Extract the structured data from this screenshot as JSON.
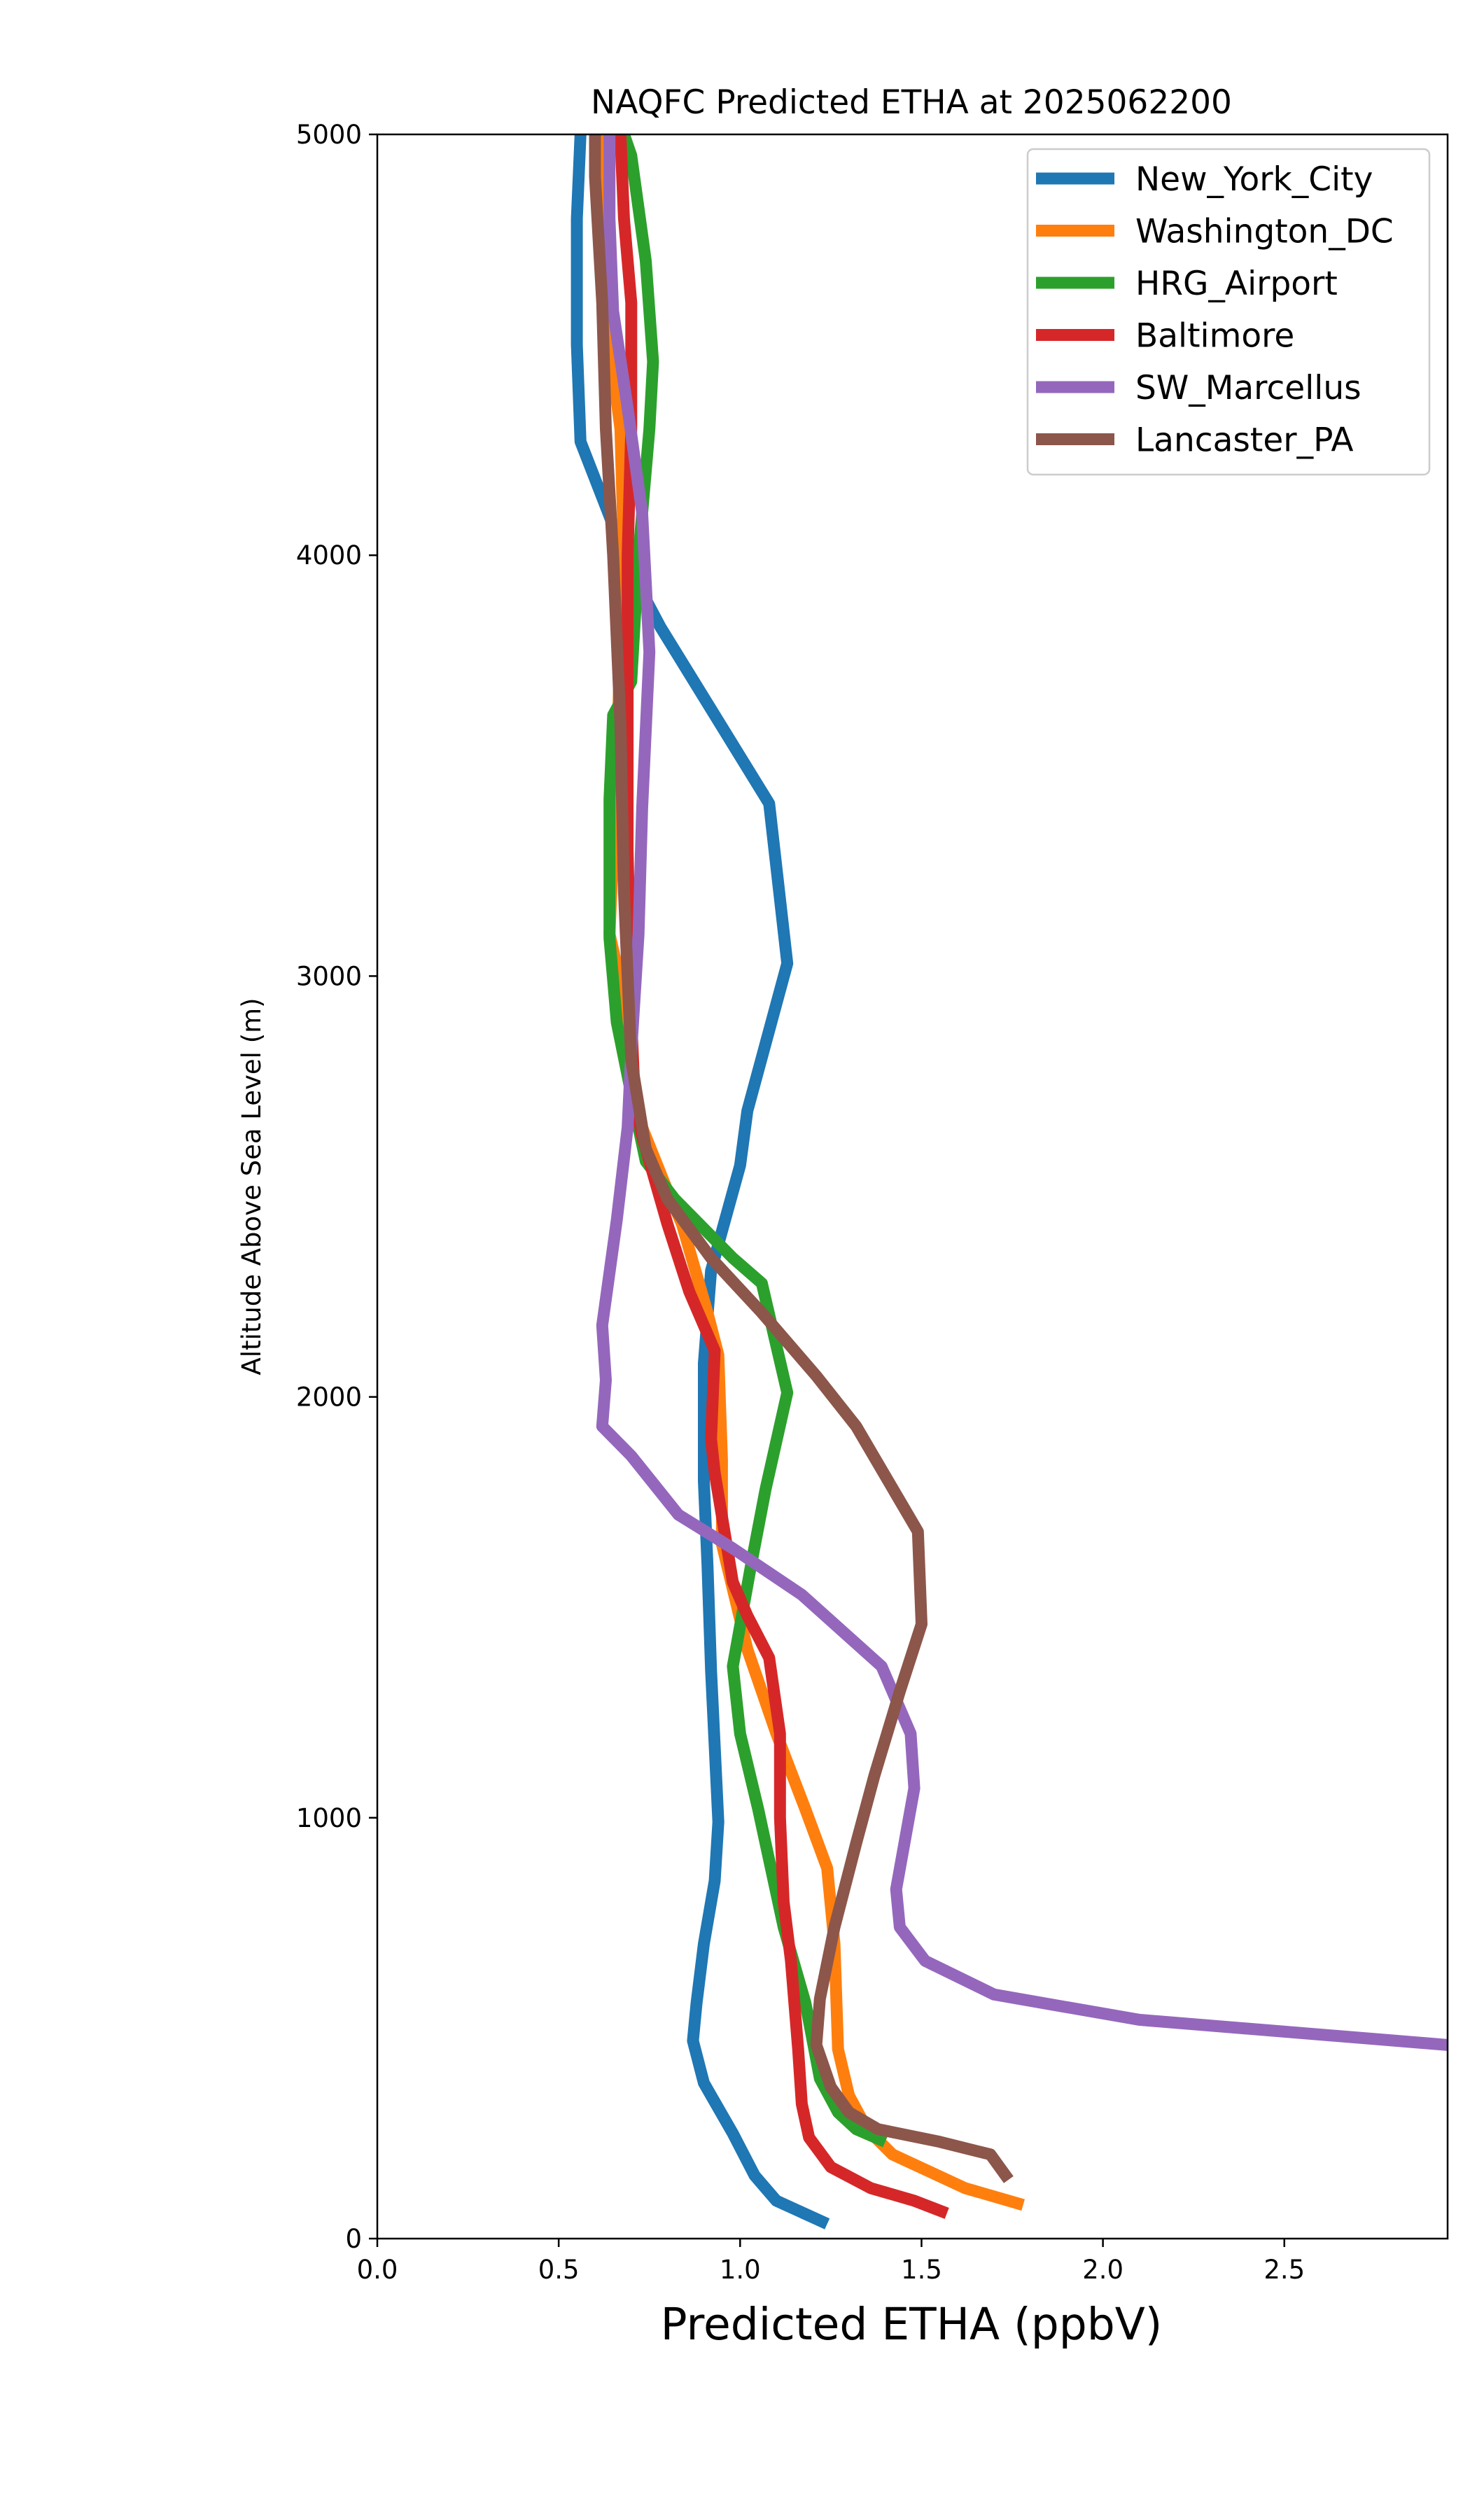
{
  "chart_data": {
    "type": "line",
    "title": "NAQFC Predicted ETHA at 2025062200",
    "xlabel": "Predicted ETHA (ppbV)",
    "ylabel": "Altitude Above Sea Level (m)",
    "xlim": [
      0.0,
      2.95
    ],
    "ylim": [
      0,
      5000
    ],
    "xticks": [
      0.0,
      0.5,
      1.0,
      1.5,
      2.0,
      2.5
    ],
    "xtick_labels": [
      "0.0",
      "0.5",
      "1.0",
      "1.5",
      "2.0",
      "2.5"
    ],
    "yticks": [
      0,
      1000,
      2000,
      3000,
      4000,
      5000
    ],
    "ytick_labels": [
      "0",
      "1000",
      "2000",
      "3000",
      "4000",
      "5000"
    ],
    "grid": false,
    "legend_position": "top-right",
    "series": [
      {
        "name": "New_York_City",
        "color": "#1f77b4",
        "points": [
          [
            1.24,
            35
          ],
          [
            1.1,
            90
          ],
          [
            1.04,
            150
          ],
          [
            0.98,
            250
          ],
          [
            0.9,
            370
          ],
          [
            0.87,
            470
          ],
          [
            0.88,
            560
          ],
          [
            0.9,
            700
          ],
          [
            0.93,
            850
          ],
          [
            0.94,
            990
          ],
          [
            0.92,
            1350
          ],
          [
            0.91,
            1600
          ],
          [
            0.9,
            1800
          ],
          [
            0.9,
            2080
          ],
          [
            0.92,
            2300
          ],
          [
            1.0,
            2550
          ],
          [
            1.02,
            2680
          ],
          [
            1.13,
            3030
          ],
          [
            1.08,
            3410
          ],
          [
            0.78,
            3830
          ],
          [
            0.7,
            3960
          ],
          [
            0.56,
            4270
          ],
          [
            0.55,
            4500
          ],
          [
            0.55,
            4800
          ],
          [
            0.56,
            5000
          ]
        ]
      },
      {
        "name": "Washington_DC",
        "color": "#ff7f0e",
        "points": [
          [
            1.78,
            80
          ],
          [
            1.62,
            120
          ],
          [
            1.52,
            160
          ],
          [
            1.42,
            200
          ],
          [
            1.35,
            260
          ],
          [
            1.3,
            340
          ],
          [
            1.27,
            450
          ],
          [
            1.26,
            700
          ],
          [
            1.24,
            880
          ],
          [
            1.18,
            1020
          ],
          [
            1.1,
            1200
          ],
          [
            1.02,
            1400
          ],
          [
            0.95,
            1650
          ],
          [
            0.95,
            1850
          ],
          [
            0.94,
            2100
          ],
          [
            0.91,
            2200
          ],
          [
            0.84,
            2410
          ],
          [
            0.8,
            2490
          ],
          [
            0.73,
            2640
          ],
          [
            0.7,
            2800
          ],
          [
            0.68,
            2950
          ],
          [
            0.64,
            3100
          ],
          [
            0.66,
            3500
          ],
          [
            0.67,
            3800
          ],
          [
            0.68,
            4000
          ],
          [
            0.67,
            4300
          ],
          [
            0.64,
            4500
          ],
          [
            0.62,
            4800
          ],
          [
            0.61,
            5000
          ]
        ]
      },
      {
        "name": "HRG_Airport",
        "color": "#2ca02c",
        "points": [
          [
            1.4,
            230
          ],
          [
            1.32,
            260
          ],
          [
            1.27,
            300
          ],
          [
            1.22,
            380
          ],
          [
            1.18,
            560
          ],
          [
            1.12,
            740
          ],
          [
            1.05,
            1020
          ],
          [
            1.0,
            1200
          ],
          [
            0.98,
            1360
          ],
          [
            1.03,
            1600
          ],
          [
            1.07,
            1780
          ],
          [
            1.13,
            2010
          ],
          [
            1.06,
            2270
          ],
          [
            0.98,
            2330
          ],
          [
            0.9,
            2400
          ],
          [
            0.82,
            2470
          ],
          [
            0.74,
            2560
          ],
          [
            0.7,
            2720
          ],
          [
            0.66,
            2890
          ],
          [
            0.64,
            3090
          ],
          [
            0.64,
            3420
          ],
          [
            0.65,
            3620
          ],
          [
            0.7,
            3700
          ],
          [
            0.72,
            4000
          ],
          [
            0.75,
            4300
          ],
          [
            0.76,
            4460
          ],
          [
            0.74,
            4700
          ],
          [
            0.7,
            4950
          ],
          [
            0.68,
            5000
          ]
        ]
      },
      {
        "name": "Baltimore",
        "color": "#d62728",
        "points": [
          [
            1.57,
            60
          ],
          [
            1.48,
            90
          ],
          [
            1.36,
            120
          ],
          [
            1.25,
            170
          ],
          [
            1.19,
            240
          ],
          [
            1.17,
            320
          ],
          [
            1.16,
            450
          ],
          [
            1.14,
            660
          ],
          [
            1.12,
            800
          ],
          [
            1.11,
            1000
          ],
          [
            1.11,
            1200
          ],
          [
            1.08,
            1380
          ],
          [
            1.02,
            1480
          ],
          [
            0.98,
            1560
          ],
          [
            0.93,
            1820
          ],
          [
            0.92,
            1900
          ],
          [
            0.93,
            2110
          ],
          [
            0.86,
            2250
          ],
          [
            0.8,
            2410
          ],
          [
            0.73,
            2620
          ],
          [
            0.71,
            2700
          ],
          [
            0.7,
            2900
          ],
          [
            0.69,
            3300
          ],
          [
            0.69,
            3700
          ],
          [
            0.69,
            4000
          ],
          [
            0.7,
            4300
          ],
          [
            0.7,
            4600
          ],
          [
            0.68,
            4800
          ],
          [
            0.67,
            5000
          ]
        ]
      },
      {
        "name": "SW_Marcellus",
        "color": "#9467bd",
        "points": [
          [
            2.95,
            460
          ],
          [
            2.1,
            520
          ],
          [
            1.7,
            580
          ],
          [
            1.51,
            660
          ],
          [
            1.44,
            740
          ],
          [
            1.43,
            830
          ],
          [
            1.48,
            1070
          ],
          [
            1.47,
            1200
          ],
          [
            1.39,
            1360
          ],
          [
            1.17,
            1530
          ],
          [
            0.98,
            1640
          ],
          [
            0.83,
            1720
          ],
          [
            0.7,
            1860
          ],
          [
            0.62,
            1930
          ],
          [
            0.63,
            2040
          ],
          [
            0.62,
            2170
          ],
          [
            0.66,
            2420
          ],
          [
            0.69,
            2640
          ],
          [
            0.7,
            2820
          ],
          [
            0.72,
            3100
          ],
          [
            0.73,
            3400
          ],
          [
            0.75,
            3770
          ],
          [
            0.73,
            4100
          ],
          [
            0.69,
            4350
          ],
          [
            0.65,
            4580
          ],
          [
            0.64,
            4800
          ],
          [
            0.64,
            5000
          ]
        ]
      },
      {
        "name": "Lancaster_PA",
        "color": "#8c564b",
        "points": [
          [
            1.74,
            140
          ],
          [
            1.69,
            200
          ],
          [
            1.55,
            230
          ],
          [
            1.38,
            260
          ],
          [
            1.3,
            300
          ],
          [
            1.25,
            360
          ],
          [
            1.21,
            460
          ],
          [
            1.22,
            570
          ],
          [
            1.26,
            740
          ],
          [
            1.32,
            940
          ],
          [
            1.37,
            1100
          ],
          [
            1.44,
            1300
          ],
          [
            1.5,
            1460
          ],
          [
            1.49,
            1680
          ],
          [
            1.32,
            1930
          ],
          [
            1.21,
            2050
          ],
          [
            1.06,
            2200
          ],
          [
            0.92,
            2330
          ],
          [
            0.8,
            2470
          ],
          [
            0.74,
            2590
          ],
          [
            0.7,
            2800
          ],
          [
            0.68,
            3200
          ],
          [
            0.67,
            3600
          ],
          [
            0.65,
            4000
          ],
          [
            0.63,
            4300
          ],
          [
            0.62,
            4600
          ],
          [
            0.6,
            4900
          ],
          [
            0.6,
            5000
          ]
        ]
      }
    ]
  }
}
